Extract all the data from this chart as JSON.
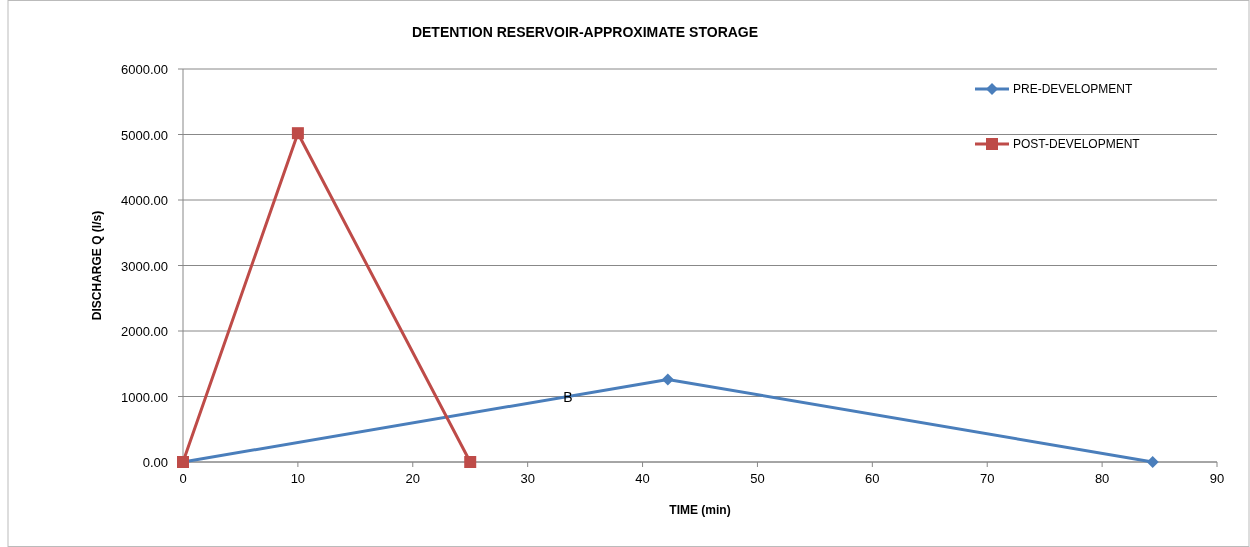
{
  "chart_data": {
    "type": "line",
    "title": "DETENTION RESERVOIR-APPROXIMATE STORAGE",
    "xlabel": "TIME (min)",
    "ylabel": "DISCHARGE Q (l/s)",
    "xlim": [
      0,
      90
    ],
    "xticks": [
      0,
      10,
      20,
      30,
      40,
      50,
      60,
      70,
      80,
      90
    ],
    "ylim": [
      0,
      6000
    ],
    "yticks": [
      {
        "value": 0,
        "label": "0.00"
      },
      {
        "value": 1000,
        "label": "1000.00"
      },
      {
        "value": 2000,
        "label": "2000.00"
      },
      {
        "value": 3000,
        "label": "3000.00"
      },
      {
        "value": 4000,
        "label": "4000.00"
      },
      {
        "value": 5000,
        "label": "5000.00"
      },
      {
        "value": 6000,
        "label": "6000.00"
      }
    ],
    "grid": "y",
    "legend": "top right",
    "line_style": "solid",
    "annotations": [
      {
        "text": "B",
        "x": 33.5,
        "y": 1000
      }
    ],
    "series": [
      {
        "name": "PRE-DEVELOPMENT",
        "color": "#4a7ebb",
        "marker": "diamond",
        "x": [
          0,
          42.2,
          84.4
        ],
        "values": [
          0,
          1260,
          0
        ]
      },
      {
        "name": "POST-DEVELOPMENT",
        "color": "#be4b48",
        "marker": "square",
        "x": [
          0,
          10,
          25
        ],
        "values": [
          0,
          5020,
          0
        ]
      }
    ]
  }
}
